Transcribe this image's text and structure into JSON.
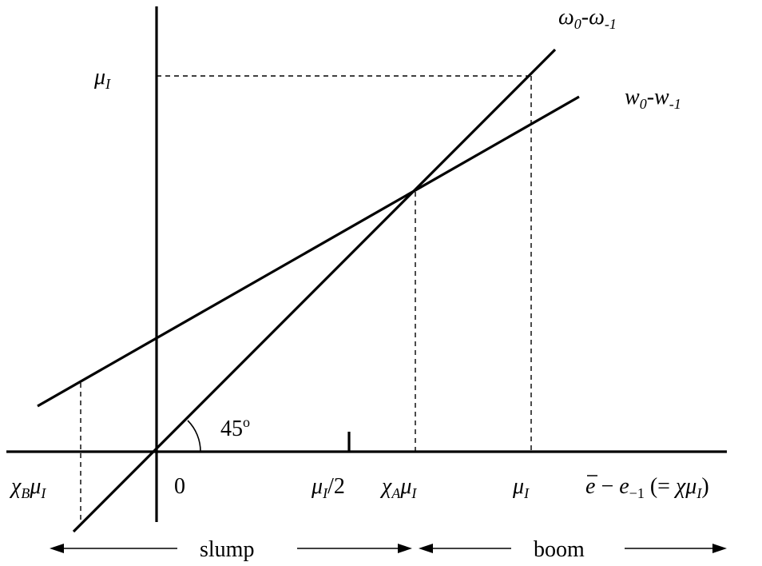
{
  "labels": {
    "omega_line": {
      "a": "ω",
      "a_sub": "0",
      "sep": "-",
      "b": "ω",
      "b_sub": "-1"
    },
    "w_line": {
      "a": "w",
      "a_sub": "0",
      "sep": "-",
      "b": "w",
      "b_sub": "-1"
    },
    "mu_y": {
      "base": "μ",
      "sub": "I"
    },
    "angle": {
      "value": "45",
      "sup": "o"
    },
    "x_chi_b": {
      "chi": "χ",
      "chi_sub": "B",
      "mu": "μ",
      "mu_sub": "I"
    },
    "x_zero": "0",
    "x_mu_half": {
      "mu": "μ",
      "mu_sub": "I",
      "rest": "/2"
    },
    "x_chi_a": {
      "chi": "χ",
      "chi_sub": "A",
      "mu": "μ",
      "mu_sub": "I"
    },
    "x_mu": {
      "base": "μ",
      "sub": "I"
    },
    "x_axis_label": {
      "e": "e",
      "minus": " − ",
      "e2": "e",
      "e2_sub": "−1",
      "paren": " (= ",
      "chi": "χ",
      "mu": "μ",
      "mu_sub": "I",
      "close": ")"
    },
    "slump": "slump",
    "boom": "boom"
  }
}
